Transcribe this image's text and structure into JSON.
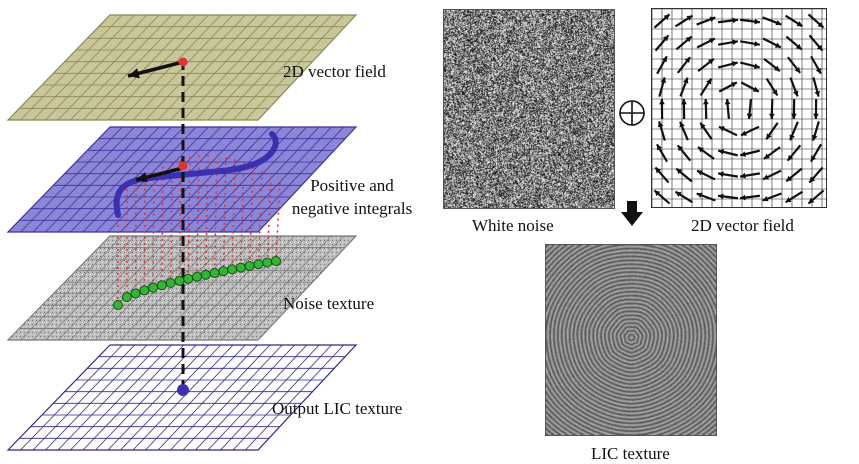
{
  "labels": {
    "vector_field_layer": "2D vector field",
    "integrals_line1": "Positive and",
    "integrals_line2": "negative integrals",
    "noise_texture_layer": "Noise texture",
    "output_layer": "Output LIC texture",
    "white_noise": "White noise",
    "vector_field_panel": "2D vector field",
    "lic_texture": "LIC texture"
  },
  "colors": {
    "vector_plane": "#c9c79a",
    "vector_grid": "#8a8752",
    "integral_plane": "#8c86d6",
    "integral_grid": "#3a33a0",
    "noise_plane": "#d8d8d8",
    "noise_grid": "#7a7a7a",
    "output_plane": "#ffffff",
    "output_grid": "#2f2a8a",
    "streamline": "#3a30b0",
    "sample_dots": "#e53030",
    "noise_samples": "#2fa62f"
  },
  "icons": {
    "combine": "circled-plus-icon",
    "flow": "down-arrow-icon"
  }
}
